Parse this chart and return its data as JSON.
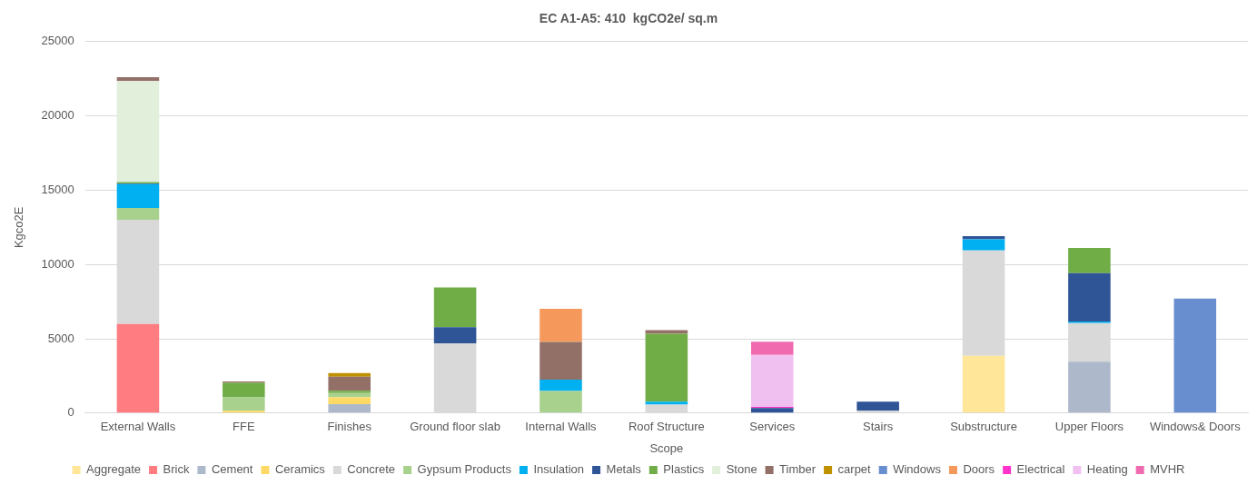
{
  "chart_data": {
    "type": "bar",
    "title": "EC A1-A5: 410  kgCO2e/ sq.m",
    "xlabel": "Scope",
    "ylabel": "Kgco2E",
    "categories": [
      "External Walls",
      "FFE",
      "Finishes",
      "Ground floor slab",
      "Internal Walls",
      "Roof Structure",
      "Services",
      "Stairs",
      "Substructure",
      "Upper Floors",
      "Windows& Doors"
    ],
    "stacked": true,
    "ylim": [
      0,
      25000
    ],
    "yticks": [
      0,
      5000,
      10000,
      15000,
      20000,
      25000
    ],
    "grid": "y",
    "legend": "bottom",
    "series": [
      {
        "name": "Aggregate",
        "color": "#ffe699",
        "values": [
          null,
          null,
          null,
          null,
          null,
          null,
          null,
          null,
          3850,
          null,
          null
        ]
      },
      {
        "name": "Brick",
        "color": "#ff7c80",
        "values": [
          6000,
          null,
          null,
          null,
          null,
          null,
          null,
          null,
          null,
          null,
          null
        ]
      },
      {
        "name": "Cement",
        "color": "#adb9ca",
        "values": [
          null,
          null,
          600,
          null,
          null,
          null,
          null,
          null,
          null,
          3450,
          null
        ]
      },
      {
        "name": "Ceramics",
        "color": "#ffd966",
        "values": [
          null,
          150,
          450,
          null,
          null,
          null,
          null,
          null,
          null,
          null,
          null
        ]
      },
      {
        "name": "Concrete",
        "color": "#d9d9d9",
        "values": [
          7000,
          null,
          null,
          4700,
          null,
          570,
          null,
          150,
          7100,
          2610,
          null
        ]
      },
      {
        "name": "Gypsum Products",
        "color": "#a9d18e",
        "values": [
          800,
          900,
          300,
          null,
          1480,
          null,
          null,
          null,
          null,
          null,
          null
        ]
      },
      {
        "name": "Insulation",
        "color": "#00b0f0",
        "values": [
          1600,
          null,
          null,
          null,
          770,
          200,
          null,
          null,
          750,
          100,
          null
        ]
      },
      {
        "name": "Metals",
        "color": "#2f5597",
        "values": [
          50,
          null,
          null,
          1080,
          null,
          null,
          340,
          620,
          200,
          3250,
          null
        ]
      },
      {
        "name": "Plastics",
        "color": "#70ad47",
        "values": [
          100,
          980,
          150,
          2670,
          null,
          4560,
          null,
          null,
          null,
          1700,
          null
        ]
      },
      {
        "name": "Stone",
        "color": "#e2efda",
        "values": [
          6800,
          null,
          null,
          null,
          null,
          null,
          null,
          null,
          null,
          null,
          null
        ]
      },
      {
        "name": "Timber",
        "color": "#937067",
        "values": [
          250,
          100,
          950,
          null,
          2540,
          250,
          null,
          null,
          null,
          null,
          null
        ]
      },
      {
        "name": "carpet",
        "color": "#bf9000",
        "values": [
          null,
          null,
          250,
          null,
          null,
          null,
          null,
          null,
          null,
          null,
          null
        ]
      },
      {
        "name": "Windows",
        "color": "#698ed0",
        "values": [
          null,
          null,
          null,
          null,
          null,
          null,
          null,
          null,
          null,
          null,
          7710
        ]
      },
      {
        "name": "Doors",
        "color": "#f4995b",
        "values": [
          null,
          null,
          null,
          null,
          2220,
          null,
          null,
          null,
          null,
          null,
          null
        ]
      },
      {
        "name": "Electrical",
        "color": "#ff33cc",
        "values": [
          null,
          null,
          null,
          null,
          null,
          null,
          80,
          null,
          null,
          null,
          null
        ]
      },
      {
        "name": "Heating",
        "color": "#f0c0f0",
        "values": [
          null,
          null,
          null,
          null,
          null,
          null,
          3490,
          null,
          null,
          null,
          null
        ]
      },
      {
        "name": "MVHR",
        "color": "#f06aaf",
        "values": [
          null,
          null,
          null,
          null,
          null,
          null,
          890,
          null,
          null,
          null,
          null
        ]
      }
    ]
  }
}
